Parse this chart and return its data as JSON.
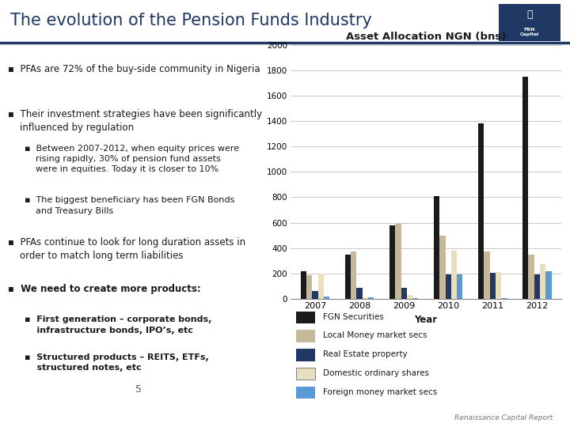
{
  "title": "The evolution of the Pension Funds Industry",
  "chart_title": "Asset Allocation NGN (bns)",
  "xlabel": "Year",
  "years": [
    2007,
    2008,
    2009,
    2010,
    2011,
    2012
  ],
  "series": {
    "FGN Securities": [
      220,
      350,
      580,
      810,
      1380,
      1750
    ],
    "Local Money market secs": [
      185,
      375,
      590,
      500,
      375,
      350
    ],
    "Real Estate property": [
      60,
      85,
      90,
      195,
      205,
      195
    ],
    "Domestic ordinary shares": [
      200,
      10,
      30,
      380,
      210,
      275
    ],
    "Foreign money market secs": [
      20,
      10,
      5,
      190,
      5,
      215
    ]
  },
  "colors": {
    "FGN Securities": "#1a1a1a",
    "Local Money market secs": "#c8b89a",
    "Real Estate property": "#1f3864",
    "Domestic ordinary shares": "#e8dfc0",
    "Foreign money market secs": "#5b9bd5"
  },
  "ylim": [
    0,
    2000
  ],
  "yticks": [
    0,
    200,
    400,
    600,
    800,
    1000,
    1200,
    1400,
    1600,
    1800,
    2000
  ],
  "background_color": "#ffffff",
  "title_color": "#1f3864",
  "grid_color": "#c8c8c8",
  "page_number": "5",
  "footer_text": "Renaissance Capital Report",
  "divider_color": "#1f3864",
  "text_color": "#1a1a1a"
}
